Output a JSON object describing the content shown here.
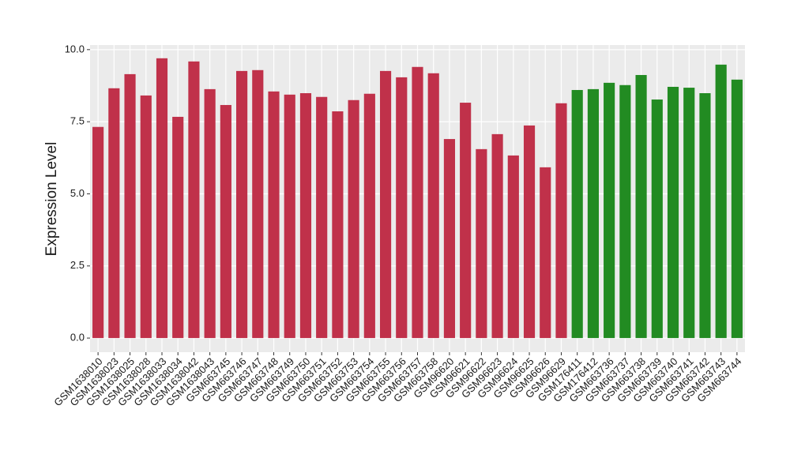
{
  "chart_data": {
    "type": "bar",
    "y_label": "Expression Level",
    "categories": [
      "GSM1638010",
      "GSM1638023",
      "GSM1638025",
      "GSM1638028",
      "GSM1638033",
      "GSM1638034",
      "GSM1638042",
      "GSM1638043",
      "GSM663745",
      "GSM663746",
      "GSM663747",
      "GSM663748",
      "GSM663749",
      "GSM663750",
      "GSM663751",
      "GSM663752",
      "GSM663753",
      "GSM663754",
      "GSM663755",
      "GSM663756",
      "GSM663757",
      "GSM663758",
      "GSM96620",
      "GSM96621",
      "GSM96622",
      "GSM96623",
      "GSM96624",
      "GSM96625",
      "GSM96626",
      "GSM96629",
      "GSM176411",
      "GSM176412",
      "GSM663736",
      "GSM663737",
      "GSM663738",
      "GSM663739",
      "GSM663740",
      "GSM663741",
      "GSM663742",
      "GSM663743",
      "GSM663744"
    ],
    "values": [
      7.32,
      8.66,
      9.15,
      8.41,
      9.7,
      7.67,
      9.59,
      8.63,
      8.08,
      9.26,
      9.29,
      8.55,
      8.44,
      8.49,
      8.36,
      7.86,
      8.25,
      8.47,
      9.26,
      9.04,
      9.4,
      9.18,
      6.9,
      8.16,
      6.55,
      7.07,
      6.33,
      7.37,
      5.92,
      8.14,
      8.6,
      8.63,
      8.85,
      8.77,
      9.12,
      8.27,
      8.71,
      8.68,
      8.49,
      9.48,
      8.96
    ],
    "colors": [
      "#c0314a",
      "#c0314a",
      "#c0314a",
      "#c0314a",
      "#c0314a",
      "#c0314a",
      "#c0314a",
      "#c0314a",
      "#c0314a",
      "#c0314a",
      "#c0314a",
      "#c0314a",
      "#c0314a",
      "#c0314a",
      "#c0314a",
      "#c0314a",
      "#c0314a",
      "#c0314a",
      "#c0314a",
      "#c0314a",
      "#c0314a",
      "#c0314a",
      "#c0314a",
      "#c0314a",
      "#c0314a",
      "#c0314a",
      "#c0314a",
      "#c0314a",
      "#c0314a",
      "#c0314a",
      "#228b22",
      "#228b22",
      "#228b22",
      "#228b22",
      "#228b22",
      "#228b22",
      "#228b22",
      "#228b22",
      "#228b22",
      "#228b22",
      "#228b22"
    ],
    "ylim": [
      -0.49,
      10.16
    ],
    "yticks": [
      {
        "value": 0,
        "label": "0.0"
      },
      2.5,
      {
        "value": 5,
        "label": "5.0"
      },
      7.5,
      {
        "value": 10,
        "label": "10.0"
      }
    ],
    "grid": true
  }
}
